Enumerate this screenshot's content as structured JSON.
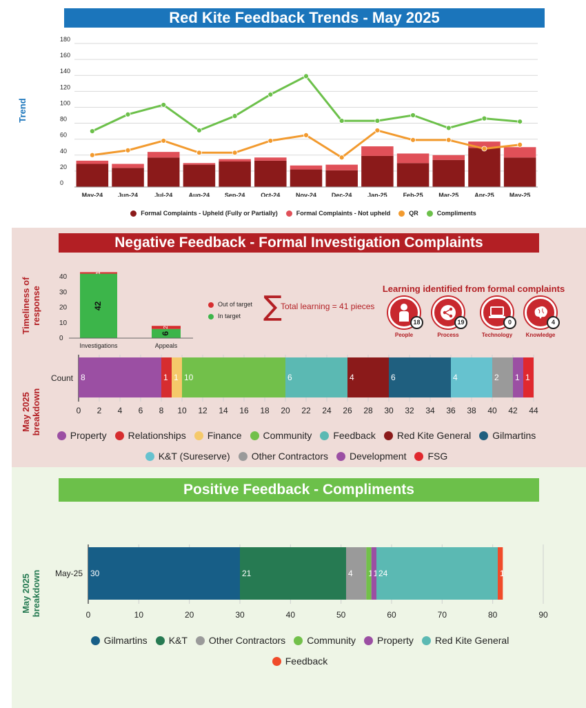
{
  "sections": {
    "trend_title": "Red Kite Feedback Trends - May 2025",
    "trend_side_label": "Trend",
    "negative_title": "Negative Feedback - Formal Investigation Complaints",
    "timeliness_side_label": "Timeliness of response",
    "breakdown_side_label": "May 2025 breakdown",
    "positive_title": "Positive Feedback - Compliments",
    "positive_side_label": "May 2025 breakdown"
  },
  "learning": {
    "title": "Learning identified from formal complaints",
    "total_text": "Total learning = 41 pieces",
    "sigma": "∑",
    "items": [
      {
        "name": "People",
        "count": "18",
        "icon": "person-icon"
      },
      {
        "name": "Process",
        "count": "19",
        "icon": "share-icon"
      },
      {
        "name": "Technology",
        "count": "0",
        "icon": "laptop-icon"
      },
      {
        "name": "Knowledge",
        "count": "4",
        "icon": "brain-icon"
      }
    ]
  },
  "colors": {
    "trend_banner": "#1b75bb",
    "negative_banner": "#b31f24",
    "positive_banner": "#6cc04a",
    "negative_bg": "#efdcd8",
    "positive_bg": "#eef5e6",
    "upheld": "#8b1a1a",
    "not_upheld": "#e05058",
    "qr": "#f29a2e",
    "compliments": "#6cc04a"
  },
  "chart_data": [
    {
      "id": "trend",
      "type": "bar",
      "title": "Red Kite Feedback Trends - May 2025",
      "ylabel": "Trend",
      "ylim": [
        0,
        180
      ],
      "yticks": [
        0,
        20,
        40,
        60,
        80,
        100,
        120,
        140,
        160,
        180
      ],
      "categories": [
        "May-24",
        "Jun-24",
        "Jul-24",
        "Aug-24",
        "Sep-24",
        "Oct-24",
        "Nov-24",
        "Dec-24",
        "Jan-25",
        "Feb-25",
        "Mar-25",
        "Apr-25",
        "May-25"
      ],
      "series": [
        {
          "name": "Formal Complaints - Upheld (Fully or Partially)",
          "kind": "bar",
          "color": "#8b1a1a",
          "values": [
            29,
            24,
            37,
            28,
            32,
            33,
            22,
            21,
            39,
            30,
            34,
            49,
            37
          ]
        },
        {
          "name": "Formal Complaints - Not upheld",
          "kind": "bar",
          "color": "#e05058",
          "values": [
            4,
            5,
            7,
            2,
            3,
            4,
            5,
            7,
            12,
            12,
            6,
            8,
            13
          ]
        },
        {
          "name": "QR",
          "kind": "line",
          "color": "#f29a2e",
          "values": [
            40,
            46,
            58,
            43,
            43,
            58,
            65,
            37,
            71,
            59,
            59,
            48,
            53
          ]
        },
        {
          "name": "Compliments",
          "kind": "line",
          "color": "#6cc04a",
          "values": [
            70,
            91,
            103,
            71,
            89,
            116,
            139,
            83,
            83,
            90,
            74,
            86,
            82
          ]
        }
      ]
    },
    {
      "id": "timeliness",
      "type": "bar",
      "ylabel": "Timeliness of response",
      "ylim": [
        0,
        45
      ],
      "yticks": [
        0,
        10,
        20,
        30,
        40
      ],
      "categories": [
        "Investigations",
        "Appeals"
      ],
      "series": [
        {
          "name": "In target",
          "color": "#3cb54a",
          "values": [
            42,
            6
          ]
        },
        {
          "name": "Out of target",
          "color": "#d62d2f",
          "values": [
            1,
            2
          ]
        }
      ]
    },
    {
      "id": "negative_breakdown",
      "type": "bar",
      "orientation": "horizontal-stacked",
      "category": "Count",
      "ylabel": "May 2025 breakdown",
      "xlim": [
        0,
        44
      ],
      "xticks": [
        0,
        2,
        4,
        6,
        8,
        10,
        12,
        14,
        16,
        18,
        20,
        22,
        24,
        26,
        28,
        30,
        32,
        34,
        36,
        38,
        40,
        42,
        44
      ],
      "series": [
        {
          "name": "Property",
          "color": "#9b4fa3",
          "value": 8
        },
        {
          "name": "Relationships",
          "color": "#d62d2f",
          "value": 1
        },
        {
          "name": "Finance",
          "color": "#f5c96a",
          "value": 1
        },
        {
          "name": "Community",
          "color": "#72c04a",
          "value": 10
        },
        {
          "name": "Feedback",
          "color": "#5bb9b3",
          "value": 6
        },
        {
          "name": "Red Kite General",
          "color": "#8b1a1a",
          "value": 4
        },
        {
          "name": "Gilmartins",
          "color": "#1f5f7f",
          "value": 6
        },
        {
          "name": "K&T (Sureserve)",
          "color": "#66c2cf",
          "value": 4
        },
        {
          "name": "Other Contractors",
          "color": "#9a9a9a",
          "value": 2
        },
        {
          "name": "Development",
          "color": "#9b4fa3",
          "value": 1
        },
        {
          "name": "FSG",
          "color": "#e0282e",
          "value": 1
        }
      ]
    },
    {
      "id": "positive_breakdown",
      "type": "bar",
      "orientation": "horizontal-stacked",
      "category": "May-25",
      "ylabel": "May 2025 breakdown",
      "xlim": [
        0,
        90
      ],
      "xticks": [
        0,
        10,
        20,
        30,
        40,
        50,
        60,
        70,
        80,
        90
      ],
      "series": [
        {
          "name": "Gilmartins",
          "color": "#175e87",
          "value": 30
        },
        {
          "name": "K&T",
          "color": "#267a52",
          "value": 21
        },
        {
          "name": "Other Contractors",
          "color": "#9a9a9a",
          "value": 4
        },
        {
          "name": "Community",
          "color": "#72c04a",
          "value": 1
        },
        {
          "name": "Property",
          "color": "#9b4fa3",
          "value": 1
        },
        {
          "name": "Red Kite General",
          "color": "#5bb9b3",
          "value": 24
        },
        {
          "name": "Feedback",
          "color": "#f04b2a",
          "value": 1
        }
      ]
    }
  ]
}
